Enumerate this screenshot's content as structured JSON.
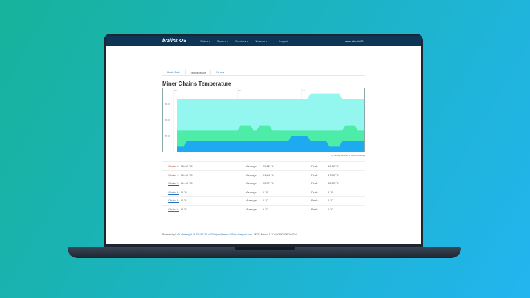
{
  "nav": {
    "logo": "braiins OS",
    "menus": [
      "Status ▾",
      "System ▾",
      "Services ▾",
      "Network ▾",
      "Logout"
    ],
    "autotune": "Autorefresh ON"
  },
  "tabs": [
    {
      "label": "Hash Rate",
      "active": false
    },
    {
      "label": "Temperature",
      "active": true
    },
    {
      "label": "Errors",
      "active": false
    }
  ],
  "title": "Miner Chains Temperature",
  "chart_note": "(2 minute window, 2 second interval)",
  "table": {
    "avg_label": "Average:",
    "peak_label": "Peak:",
    "rows": [
      {
        "chain": "Chain 0:",
        "value": "58.00 °C",
        "avg": "53.62 °C",
        "peak": "59.00 °C",
        "color": "#c0392b"
      },
      {
        "chain": "Chain 1:",
        "value": "56.00 °C",
        "avg": "51.64 °C",
        "peak": "57.00 °C",
        "color": "#c0392b"
      },
      {
        "chain": "Chain 2:",
        "value": "64.00 °C",
        "avg": "55.37 °C",
        "peak": "65.00 °C",
        "color": "#555555"
      },
      {
        "chain": "Chain 3:",
        "value": "0 °C",
        "avg": "0 °C",
        "peak": "0 °C",
        "color": "#2a6fb5"
      },
      {
        "chain": "Chain 4:",
        "value": "0 °C",
        "avg": "0 °C",
        "peak": "0 °C",
        "color": "#2a6fb5"
      },
      {
        "chain": "Chain 5:",
        "value": "0 °C",
        "avg": "0 °C",
        "peak": "0 °C",
        "color": "#2a6fb5"
      }
    ]
  },
  "footer": {
    "prefix": "Powered by ",
    "luci": "LuCI Master (git-18.128.50128-e432fcd)",
    "mid": " and ",
    "os": "braiins OS for slushpool.com",
    "suffix": " / LEDE Reboot 17.01.4 r3560-79f57e422d"
  },
  "chart_data": {
    "type": "area",
    "ylim": [
      54,
      66
    ],
    "yticks": [
      "63.00",
      "60.00",
      "57.00"
    ],
    "xticks": [
      "Tu",
      "Tu",
      "Tu"
    ],
    "grid": true,
    "series": [
      {
        "color": "#93f7ef",
        "baseline": 64,
        "bumps": [
          [
            42,
            51,
            65
          ]
        ]
      },
      {
        "color": "#4deca8",
        "baseline": 58,
        "bumps": [
          [
            20,
            23,
            59
          ],
          [
            26,
            29,
            59
          ],
          [
            53,
            56,
            59
          ]
        ]
      },
      {
        "color": "#1eaaf1",
        "baseline": 56,
        "bumps": [
          [
            0,
            2,
            55
          ],
          [
            48,
            51,
            55
          ],
          [
            36,
            41,
            57
          ]
        ]
      }
    ]
  }
}
